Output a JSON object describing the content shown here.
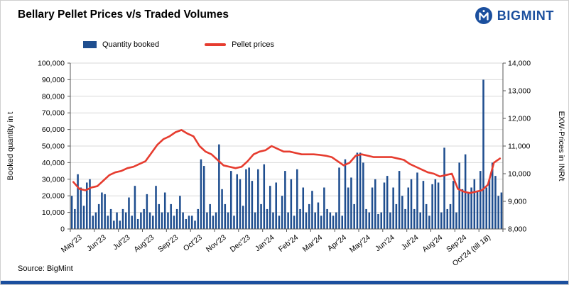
{
  "header": {
    "title": "Bellary Pellet Prices v/s Traded Volumes",
    "brand": "BIGMINT"
  },
  "legend": {
    "bar_label": "Quantity booked",
    "line_label": "Pellet prices"
  },
  "source": {
    "text": "Source: BigMint"
  },
  "chart_data": {
    "type": "combo",
    "title": "Bellary Pellet Prices v/s Traded Volumes",
    "bar_series_name": "Quantity booked",
    "line_series_name": "Pellet prices",
    "bar_color": "#1f4e8f",
    "line_color": "#e63c2f",
    "grid_color": "#d9d9d9",
    "axis_color": "#595959",
    "left_axis": {
      "label": "Booked quantity in t",
      "min": 0,
      "max": 100000,
      "step": 10000,
      "ticks": [
        "0",
        "10,000",
        "20,000",
        "30,000",
        "40,000",
        "50,000",
        "60,000",
        "70,000",
        "80,000",
        "90,000",
        "100,000"
      ]
    },
    "right_axis": {
      "label": "EXW-Prices in INR/t",
      "min": 8000,
      "max": 14000,
      "step": 1000,
      "ticks": [
        "8,000",
        "9,000",
        "10,000",
        "11,000",
        "12,000",
        "13,000",
        "14,000"
      ]
    },
    "categories": [
      "May'23",
      "Jun'23",
      "Jul'23",
      "Aug'23",
      "Sep'23",
      "Oct'23",
      "Nov'23",
      "Dec'23",
      "Jan'24",
      "Feb'24",
      "Mar'24",
      "Apr'24",
      "May'24",
      "Jun'24",
      "Jul'24",
      "Aug'24",
      "Sep'24",
      "Oct'24 (till 18)"
    ],
    "bars_per_month": 8,
    "bars": [
      {
        "month": "May'23",
        "values": [
          20000,
          12000,
          33000,
          25000,
          14000,
          28000,
          30000,
          8000
        ]
      },
      {
        "month": "Jun'23",
        "values": [
          10000,
          15000,
          22000,
          21000,
          8000,
          12000,
          5000,
          10000
        ]
      },
      {
        "month": "Jul'23",
        "values": [
          5000,
          12000,
          10000,
          19000,
          8000,
          26000,
          6000,
          10000
        ]
      },
      {
        "month": "Aug'23",
        "values": [
          12000,
          21000,
          10000,
          8000,
          26000,
          15000,
          10000,
          22000
        ]
      },
      {
        "month": "Sep'23",
        "values": [
          10000,
          15000,
          8000,
          12000,
          20000,
          10000,
          6000,
          8000
        ]
      },
      {
        "month": "Oct'23",
        "values": [
          8000,
          5000,
          12000,
          42000,
          38000,
          10000,
          15000,
          8000
        ]
      },
      {
        "month": "Nov'23",
        "values": [
          10000,
          51000,
          24000,
          15000,
          10000,
          35000,
          8000,
          33000
        ]
      },
      {
        "month": "Dec'23",
        "values": [
          30000,
          14000,
          36000,
          37000,
          29000,
          10000,
          36000,
          15000
        ]
      },
      {
        "month": "Jan'24",
        "values": [
          39000,
          12000,
          26000,
          10000,
          28000,
          8000,
          20000,
          35000
        ]
      },
      {
        "month": "Feb'24",
        "values": [
          10000,
          30000,
          8000,
          36000,
          12000,
          25000,
          10000,
          15000
        ]
      },
      {
        "month": "Mar'24",
        "values": [
          23000,
          10000,
          16000,
          8000,
          25000,
          12000,
          10000,
          8000
        ]
      },
      {
        "month": "Apr'24",
        "values": [
          10000,
          37000,
          8000,
          42000,
          25000,
          31000,
          15000,
          46000
        ]
      },
      {
        "month": "May'24",
        "values": [
          46000,
          40000,
          12000,
          10000,
          25000,
          30000,
          9000,
          10000
        ]
      },
      {
        "month": "Jun'24",
        "values": [
          28000,
          32000,
          10000,
          25000,
          15000,
          35000,
          20000,
          12000
        ]
      },
      {
        "month": "Jul'24",
        "values": [
          25000,
          30000,
          12000,
          34000,
          10000,
          29000,
          15000,
          8000
        ]
      },
      {
        "month": "Aug'24",
        "values": [
          27000,
          30000,
          28000,
          10000,
          49000,
          12000,
          15000,
          29000
        ]
      },
      {
        "month": "Sep'24",
        "values": [
          10000,
          40000,
          24000,
          45000,
          22000,
          25000,
          30000,
          23000
        ]
      },
      {
        "month": "Oct'24 (till 18)",
        "values": [
          35000,
          90000,
          25000,
          30000,
          40000,
          32000,
          20000,
          22000
        ]
      }
    ],
    "prices": [
      {
        "month": "May'23",
        "values": [
          9700,
          9450,
          9400,
          9500
        ]
      },
      {
        "month": "Jun'23",
        "values": [
          9550,
          9750,
          9950,
          10050
        ]
      },
      {
        "month": "Jul'23",
        "values": [
          10100,
          10200,
          10250,
          10350
        ]
      },
      {
        "month": "Aug'23",
        "values": [
          10450,
          10750,
          11050,
          11250
        ]
      },
      {
        "month": "Sep'23",
        "values": [
          11350,
          11500,
          11580,
          11450
        ]
      },
      {
        "month": "Oct'23",
        "values": [
          11350,
          11000,
          10800,
          10700
        ]
      },
      {
        "month": "Nov'23",
        "values": [
          10500,
          10300,
          10250,
          10200
        ]
      },
      {
        "month": "Dec'23",
        "values": [
          10250,
          10450,
          10700,
          10800
        ]
      },
      {
        "month": "Jan'24",
        "values": [
          10850,
          11000,
          10900,
          10800
        ]
      },
      {
        "month": "Feb'24",
        "values": [
          10800,
          10750,
          10700,
          10700
        ]
      },
      {
        "month": "Mar'24",
        "values": [
          10700,
          10680,
          10650,
          10600
        ]
      },
      {
        "month": "Apr'24",
        "values": [
          10450,
          10300,
          10400,
          10650
        ]
      },
      {
        "month": "May'24",
        "values": [
          10700,
          10650,
          10600,
          10600
        ]
      },
      {
        "month": "Jun'24",
        "values": [
          10600,
          10600,
          10550,
          10500
        ]
      },
      {
        "month": "Jul'24",
        "values": [
          10350,
          10250,
          10150,
          10050
        ]
      },
      {
        "month": "Aug'24",
        "values": [
          10000,
          9900,
          9950,
          10000
        ]
      },
      {
        "month": "Sep'24",
        "values": [
          9450,
          9350,
          9300,
          9350
        ]
      },
      {
        "month": "Oct'24 (till 18)",
        "values": [
          9400,
          9600,
          10400,
          10550
        ]
      }
    ]
  }
}
